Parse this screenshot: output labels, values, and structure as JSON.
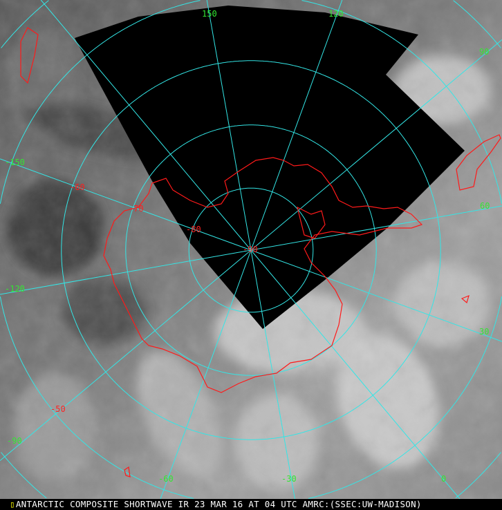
{
  "caption": "ANTARCTIC COMPOSITE SHORTWAVE IR 23 MAR 16 AT 04 UTC AMRC:(SSEC:UW-MADISON)",
  "colors": {
    "grid": "#33e6e6",
    "coast": "#ff1a1a",
    "lon_label": "#33e633",
    "lat_label": "#ff2020",
    "no_data": "#000000"
  },
  "projection": "south polar stereographic",
  "longitude_labels": [
    "150",
    "120",
    "90",
    "60",
    "30",
    "0",
    "-30",
    "-60",
    "-90",
    "-120",
    "-150"
  ],
  "latitude_labels": [
    "-50",
    "-60",
    "-70",
    "-80",
    "-90"
  ],
  "longitudes": [
    180,
    150,
    120,
    90,
    60,
    30,
    0,
    -30,
    -60,
    -90,
    -120,
    -150
  ],
  "latitudes": [
    -80,
    -70,
    -60,
    -50,
    -40
  ]
}
